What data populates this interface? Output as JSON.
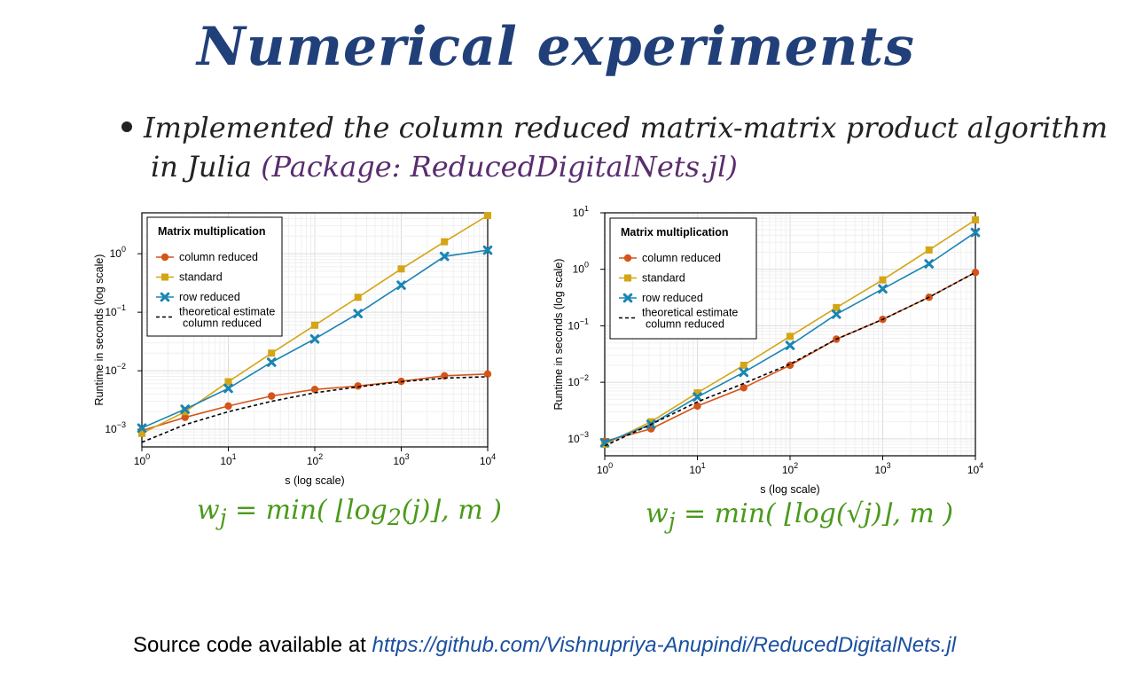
{
  "slide": {
    "title": "Numerical experiments",
    "bullet_line1": "Implemented the column reduced matrix-matrix product algorithm",
    "bullet_line2_prefix": "in Julia ",
    "bullet_package": "(Package: ReducedDigitalNets.jl)",
    "source_prefix": "Source code available at ",
    "source_link": "https://github.com/Vishnupriya-Anupindi/ReducedDigitalNets.jl"
  },
  "formulas": {
    "left": {
      "prefix": "w",
      "sub": "j",
      "eq": " = min( ⌊log",
      "sub2": "2",
      "suffix": "(j)⌋, m )"
    },
    "right": {
      "prefix": "w",
      "sub": "j",
      "eq": " = min( ⌊log(√j)⌋, m )"
    }
  },
  "colors": {
    "column_reduced": "#d4541a",
    "standard": "#d4a514",
    "row_reduced": "#1a85b3",
    "estimate": "#000000"
  },
  "chart_data": [
    {
      "type": "line",
      "legend_title": "Matrix multiplication",
      "legend_position": "top-left",
      "xlabel": "s (log scale)",
      "ylabel": "Runtime in seconds (log scale)",
      "x_scale": "log10",
      "y_scale": "log10",
      "xlim": [
        1,
        10000
      ],
      "ylim": [
        0.0005,
        5
      ],
      "x_ticks": [
        {
          "v": 1,
          "e": "0"
        },
        {
          "v": 10,
          "e": "1"
        },
        {
          "v": 100,
          "e": "2"
        },
        {
          "v": 1000,
          "e": "3"
        },
        {
          "v": 10000,
          "e": "4"
        }
      ],
      "y_ticks": [
        {
          "v": 0.001,
          "e": "−3"
        },
        {
          "v": 0.01,
          "e": "−2"
        },
        {
          "v": 0.1,
          "e": "−1"
        },
        {
          "v": 1,
          "e": "0"
        }
      ],
      "grid": true,
      "x": [
        1,
        3.16,
        10,
        31.6,
        100,
        316,
        1000,
        3160,
        10000
      ],
      "series": [
        {
          "name": "column reduced",
          "marker": "circle",
          "color": "#d4541a",
          "dashed": false,
          "values": [
            0.00095,
            0.0016,
            0.0025,
            0.0037,
            0.0048,
            0.0055,
            0.0066,
            0.0082,
            0.0088
          ]
        },
        {
          "name": "standard",
          "marker": "square",
          "color": "#d4a514",
          "dashed": false,
          "values": [
            0.00085,
            0.002,
            0.0065,
            0.02,
            0.06,
            0.18,
            0.55,
            1.6,
            4.5
          ]
        },
        {
          "name": "row reduced",
          "marker": "x",
          "color": "#1a85b3",
          "dashed": false,
          "values": [
            0.00105,
            0.0022,
            0.005,
            0.014,
            0.035,
            0.095,
            0.29,
            0.9,
            1.15
          ]
        },
        {
          "name": "theoretical estimate\ncolumn reduced",
          "marker": "none",
          "color": "#000000",
          "dashed": true,
          "values": [
            0.0006,
            0.0012,
            0.002,
            0.003,
            0.0042,
            0.0053,
            0.0065,
            0.0075,
            0.0079
          ]
        }
      ]
    },
    {
      "type": "line",
      "legend_title": "Matrix multiplication",
      "legend_position": "top-left",
      "xlabel": "s (log scale)",
      "ylabel": "Runtime in seconds (log scale)",
      "x_scale": "log10",
      "y_scale": "log10",
      "xlim": [
        1,
        10000
      ],
      "ylim": [
        0.0005,
        10
      ],
      "x_ticks": [
        {
          "v": 1,
          "e": "0"
        },
        {
          "v": 10,
          "e": "1"
        },
        {
          "v": 100,
          "e": "2"
        },
        {
          "v": 1000,
          "e": "3"
        },
        {
          "v": 10000,
          "e": "4"
        }
      ],
      "y_ticks": [
        {
          "v": 0.001,
          "e": "−3"
        },
        {
          "v": 0.01,
          "e": "−2"
        },
        {
          "v": 0.1,
          "e": "−1"
        },
        {
          "v": 1,
          "e": "0"
        },
        {
          "v": 10,
          "e": "1"
        }
      ],
      "grid": true,
      "x": [
        1,
        3.16,
        10,
        31.6,
        100,
        316,
        1000,
        3160,
        10000
      ],
      "series": [
        {
          "name": "column reduced",
          "marker": "circle",
          "color": "#d4541a",
          "dashed": false,
          "values": [
            0.0009,
            0.0015,
            0.0038,
            0.008,
            0.02,
            0.058,
            0.13,
            0.32,
            0.88
          ]
        },
        {
          "name": "standard",
          "marker": "square",
          "color": "#d4a514",
          "dashed": false,
          "values": [
            0.0008,
            0.002,
            0.0065,
            0.02,
            0.065,
            0.21,
            0.65,
            2.2,
            7.5
          ]
        },
        {
          "name": "row reduced",
          "marker": "x",
          "color": "#1a85b3",
          "dashed": false,
          "values": [
            0.00085,
            0.0018,
            0.0055,
            0.015,
            0.045,
            0.16,
            0.45,
            1.25,
            4.5
          ]
        },
        {
          "name": "theoretical estimate\ncolumn reduced",
          "marker": "none",
          "color": "#000000",
          "dashed": true,
          "values": [
            0.00075,
            0.0018,
            0.0045,
            0.0095,
            0.021,
            0.058,
            0.13,
            0.32,
            0.88
          ]
        }
      ]
    }
  ]
}
